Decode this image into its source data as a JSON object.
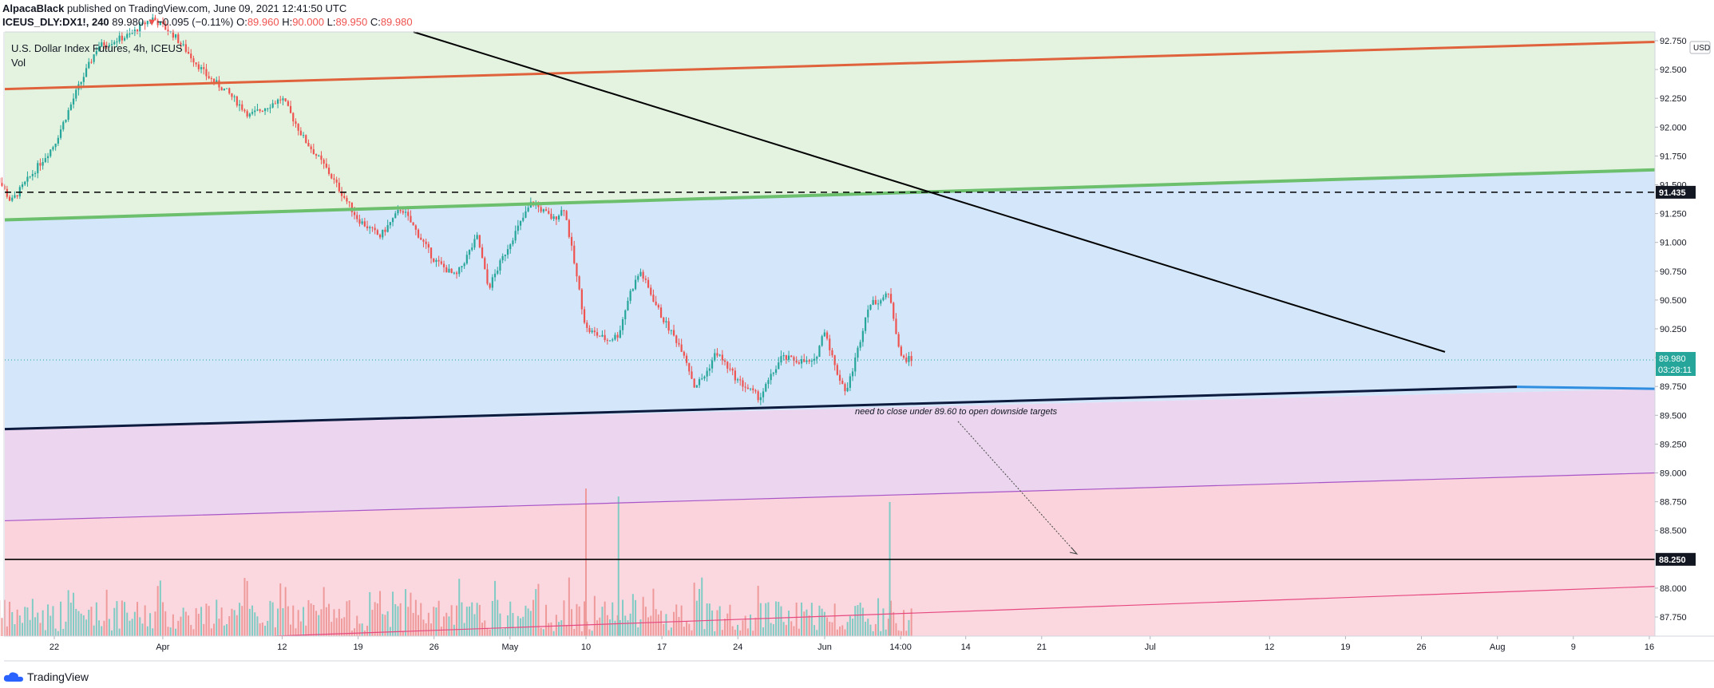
{
  "header": {
    "author": "AlpacaBlack",
    "published_text": " published on TradingView.com, June 09, 2021 12:41:50 UTC",
    "symbol": "ICEUS_DLY:DX1!, 240",
    "last": "89.980",
    "change": "−0.095 (−0.11%)",
    "o_label": "O:",
    "o_value": "89.960",
    "h_label": "H:",
    "h_value": "90.000",
    "l_label": "L:",
    "l_value": "89.950",
    "c_label": "C:",
    "c_value": "89.980"
  },
  "legend": {
    "title": "U.S. Dollar Index Futures, 4h, ICEUS",
    "vol": "Vol"
  },
  "footer": {
    "brand": "TradingView"
  },
  "colors": {
    "up": "#26a69a",
    "down": "#ef5350",
    "zone_green": "#e3f3e0",
    "zone_blue": "#d3e6fa",
    "zone_purple": "#ebd5ef",
    "zone_pink": "#fad3dd",
    "zone_light": "#fbdde2",
    "orange_line": "#e0623c",
    "green_line": "#6cbf6c",
    "purple_line": "#a855c7",
    "pink_line": "#e64980",
    "blue_line": "#2f8ee0",
    "accent": "#26a69a"
  },
  "chart_data": {
    "type": "candlestick",
    "y_axis": {
      "currency": "USD",
      "ticks": [
        "92.750",
        "92.500",
        "92.250",
        "92.000",
        "91.750",
        "91.500",
        "91.250",
        "91.000",
        "90.750",
        "90.500",
        "90.250",
        "90.000",
        "89.750",
        "89.500",
        "89.250",
        "89.000",
        "88.750",
        "88.500",
        "88.250",
        "88.000",
        "87.750"
      ],
      "tick_values": [
        92.75,
        92.5,
        92.25,
        92.0,
        91.75,
        91.5,
        91.25,
        91.0,
        90.75,
        90.5,
        90.25,
        90.0,
        89.75,
        89.5,
        89.25,
        89.0,
        88.75,
        88.5,
        88.25,
        88.0,
        87.75
      ],
      "range": [
        87.5,
        92.75
      ]
    },
    "x_axis": {
      "ticks": [
        "22",
        "Apr",
        "12",
        "19",
        "26",
        "May",
        "10",
        "17",
        "24",
        "Jun",
        "14:00",
        "14",
        "21",
        "Jul",
        "12",
        "19",
        "26",
        "Aug",
        "9",
        "16"
      ],
      "tick_dates": [
        "2021-03-22",
        "2021-04-01",
        "2021-04-12",
        "2021-04-19",
        "2021-04-26",
        "2021-05-03",
        "2021-05-10",
        "2021-05-17",
        "2021-05-24",
        "2021-06-01",
        "2021-06-08",
        "2021-06-14",
        "2021-06-21",
        "2021-07-01",
        "2021-07-12",
        "2021-07-19",
        "2021-07-26",
        "2021-08-02",
        "2021-08-09",
        "2021-08-16"
      ]
    },
    "price_path": [
      [
        "2021-03-16",
        91.7
      ],
      [
        "2021-03-18",
        91.35
      ],
      [
        "2021-03-22",
        91.85
      ],
      [
        "2021-03-24",
        92.3
      ],
      [
        "2021-03-26",
        92.7
      ],
      [
        "2021-03-29",
        92.8
      ],
      [
        "2021-03-31",
        92.95
      ],
      [
        "2021-04-02",
        92.8
      ],
      [
        "2021-04-05",
        92.45
      ],
      [
        "2021-04-07",
        92.3
      ],
      [
        "2021-04-09",
        92.1
      ],
      [
        "2021-04-12",
        92.25
      ],
      [
        "2021-04-14",
        91.9
      ],
      [
        "2021-04-16",
        91.65
      ],
      [
        "2021-04-19",
        91.2
      ],
      [
        "2021-04-21",
        91.05
      ],
      [
        "2021-04-23",
        91.3
      ],
      [
        "2021-04-26",
        90.85
      ],
      [
        "2021-04-28",
        90.7
      ],
      [
        "2021-04-30",
        91.05
      ],
      [
        "2021-05-01",
        90.6
      ],
      [
        "2021-05-03",
        91.0
      ],
      [
        "2021-05-05",
        91.35
      ],
      [
        "2021-05-07",
        91.2
      ],
      [
        "2021-05-08",
        91.3
      ],
      [
        "2021-05-10",
        90.25
      ],
      [
        "2021-05-12",
        90.15
      ],
      [
        "2021-05-13",
        90.2
      ],
      [
        "2021-05-14",
        90.55
      ],
      [
        "2021-05-15",
        90.75
      ],
      [
        "2021-05-17",
        90.35
      ],
      [
        "2021-05-19",
        90.05
      ],
      [
        "2021-05-20",
        89.75
      ],
      [
        "2021-05-21",
        89.85
      ],
      [
        "2021-05-22",
        90.05
      ],
      [
        "2021-05-24",
        89.8
      ],
      [
        "2021-05-26",
        89.65
      ],
      [
        "2021-05-28",
        90.0
      ],
      [
        "2021-05-31",
        89.95
      ],
      [
        "2021-06-01",
        90.25
      ],
      [
        "2021-06-02",
        89.9
      ],
      [
        "2021-06-03",
        89.7
      ],
      [
        "2021-06-04",
        90.05
      ],
      [
        "2021-06-05",
        90.45
      ],
      [
        "2021-06-07",
        90.55
      ],
      [
        "2021-06-08",
        90.0
      ],
      [
        "2021-06-09",
        89.98
      ]
    ],
    "levels": [
      {
        "label": "91.435",
        "value": 91.435,
        "style": "dashed"
      },
      {
        "label": "88.250",
        "value": 88.25,
        "style": "solid"
      }
    ],
    "last_price": {
      "label": "89.980",
      "value": 89.98,
      "countdown": "03:28:11"
    },
    "annotation": {
      "text": "need to close under 89.60 to open downside targets"
    },
    "volume": {
      "peaks_up": [
        "2021-05-13",
        "2021-06-07"
      ],
      "peaks_down": [
        "2021-05-10"
      ]
    }
  }
}
